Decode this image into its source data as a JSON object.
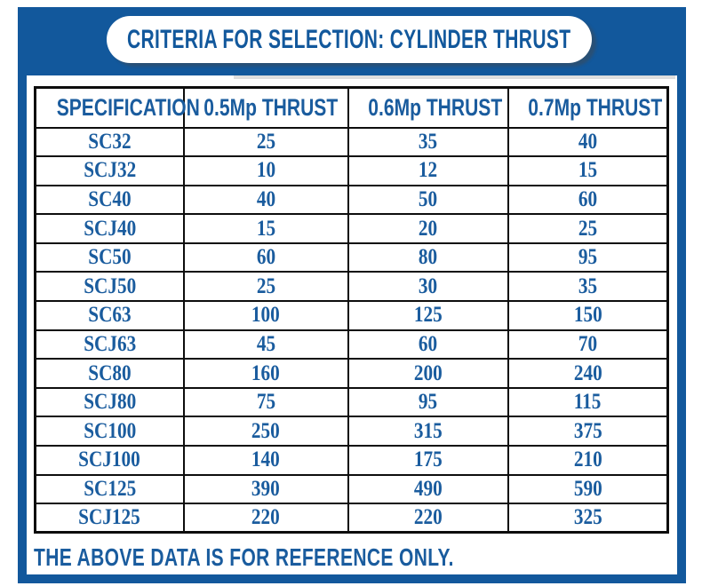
{
  "banner": {
    "title": "CRITERIA FOR SELECTION: CYLINDER THRUST"
  },
  "table": {
    "columns": [
      "SPECIFICATION",
      "0.5Mp THRUST",
      "0.6Mp THRUST",
      "0.7Mp THRUST"
    ],
    "rows": [
      {
        "spec": "SC32",
        "values": [
          "25",
          "35",
          "40"
        ]
      },
      {
        "spec": "SCJ32",
        "values": [
          "10",
          "12",
          "15"
        ]
      },
      {
        "spec": "SC40",
        "values": [
          "40",
          "50",
          "60"
        ]
      },
      {
        "spec": "SCJ40",
        "values": [
          "15",
          "20",
          "25"
        ]
      },
      {
        "spec": "SC50",
        "values": [
          "60",
          "80",
          "95"
        ]
      },
      {
        "spec": "SCJ50",
        "values": [
          "25",
          "30",
          "35"
        ]
      },
      {
        "spec": "SC63",
        "values": [
          "100",
          "125",
          "150"
        ]
      },
      {
        "spec": "SCJ63",
        "values": [
          "45",
          "60",
          "70"
        ]
      },
      {
        "spec": "SC80",
        "values": [
          "160",
          "200",
          "240"
        ]
      },
      {
        "spec": "SCJ80",
        "values": [
          "75",
          "95",
          "115"
        ]
      },
      {
        "spec": "SC100",
        "values": [
          "250",
          "315",
          "375"
        ]
      },
      {
        "spec": "SCJ100",
        "values": [
          "140",
          "175",
          "210"
        ]
      },
      {
        "spec": "SC125",
        "values": [
          "390",
          "490",
          "590"
        ]
      },
      {
        "spec": "SCJ125",
        "values": [
          "220",
          "220",
          "325"
        ]
      }
    ]
  },
  "footer": {
    "note": "THE ABOVE DATA IS FOR REFERENCE ONLY."
  },
  "colors": {
    "frame_blue": "#12589c",
    "text_blue": "#1a5c9e",
    "table_border": "#0d0d0d",
    "banner_background": "#ffffff"
  }
}
